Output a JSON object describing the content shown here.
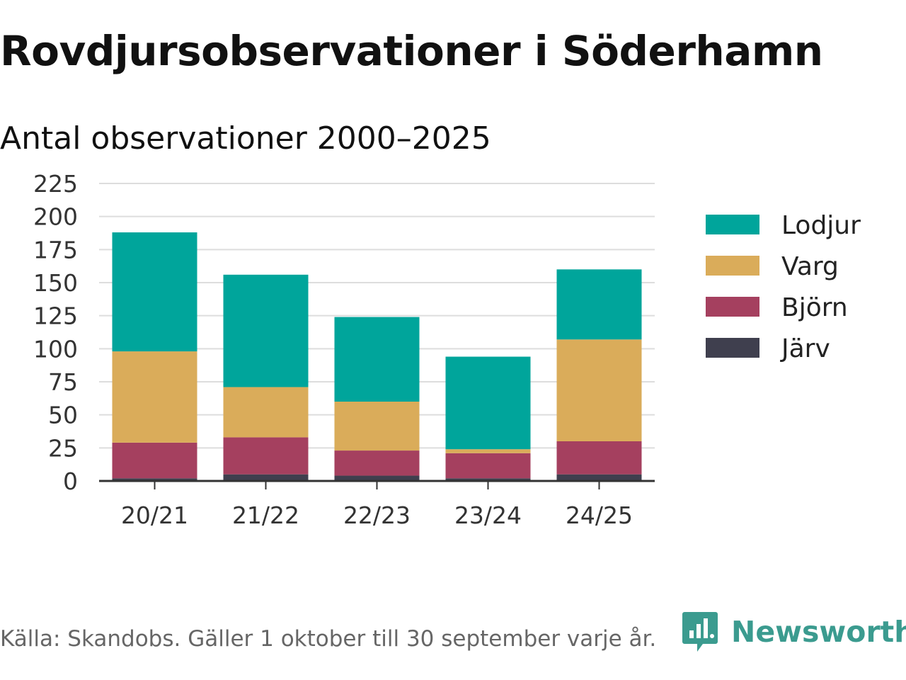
{
  "title": "Rovdjursobservationer i Söderhamn",
  "subtitle": "Antal observationer 2000–2025",
  "source": "Källa: Skandobs. Gäller 1 oktober till 30 september varje år.",
  "brand": {
    "name": "Newsworthy",
    "icon": "newsworthy-logo-icon",
    "color": "#3b9b8f"
  },
  "chart_data": {
    "type": "bar",
    "stacked": true,
    "title": "Rovdjursobservationer i Söderhamn",
    "subtitle": "Antal observationer 2000–2025",
    "xlabel": "",
    "ylabel": "",
    "categories": [
      "20/21",
      "21/22",
      "22/23",
      "23/24",
      "24/25"
    ],
    "ylim": [
      0,
      225
    ],
    "yticks": [
      0,
      25,
      50,
      75,
      100,
      125,
      150,
      175,
      200,
      225
    ],
    "grid": true,
    "legend_position": "right",
    "series": [
      {
        "name": "Järv",
        "color": "#3f3f4e",
        "values": [
          2,
          5,
          4,
          2,
          5
        ]
      },
      {
        "name": "Björn",
        "color": "#a5405f",
        "values": [
          27,
          28,
          19,
          19,
          25
        ]
      },
      {
        "name": "Varg",
        "color": "#daac5a",
        "values": [
          69,
          38,
          37,
          3,
          77
        ]
      },
      {
        "name": "Lodjur",
        "color": "#00a59b",
        "values": [
          90,
          85,
          64,
          70,
          53
        ]
      }
    ]
  }
}
